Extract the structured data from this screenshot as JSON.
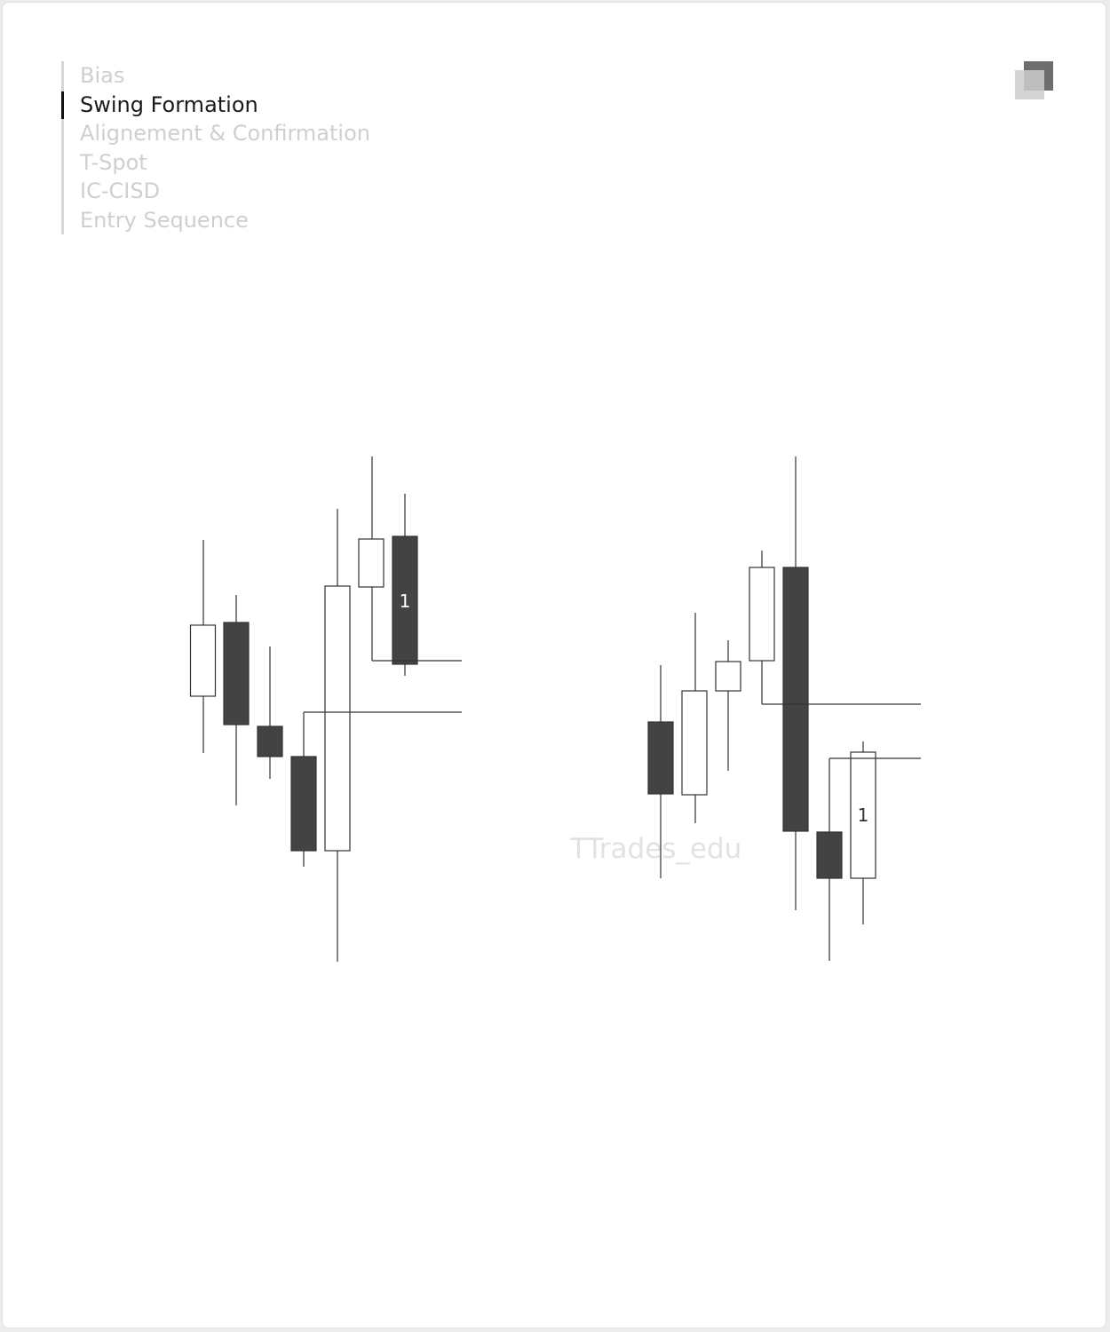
{
  "nav": {
    "items": [
      {
        "label": "Bias",
        "active": false
      },
      {
        "label": "Swing Formation",
        "active": true
      },
      {
        "label": "Alignement & Confirmation",
        "active": false
      },
      {
        "label": "T-Spot",
        "active": false
      },
      {
        "label": "IC-CISD",
        "active": false
      },
      {
        "label": "Entry Sequence",
        "active": false
      }
    ]
  },
  "logo": {
    "icon": "overlapping-squares-logo"
  },
  "watermark": "TTrades_edu",
  "colors": {
    "bearish": "#434343",
    "bullish": "#ffffff",
    "outline": "#333333",
    "active_nav": "#1a1a1a",
    "inactive_nav": "#cfcfcf"
  },
  "candle_label": "1"
}
